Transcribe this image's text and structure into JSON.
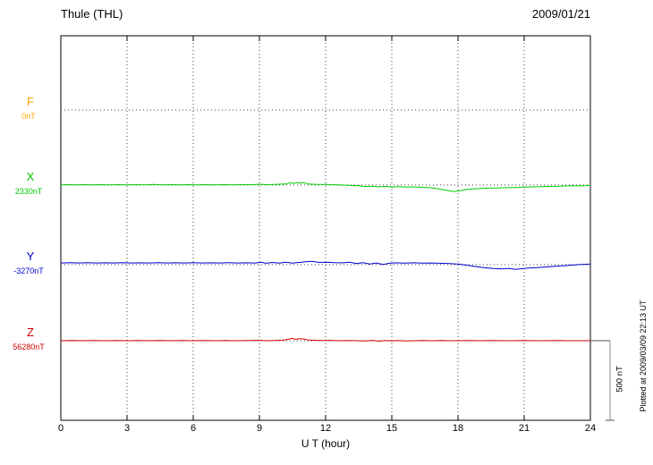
{
  "header": {
    "title": "Thule (THL)",
    "date": "2009/01/21"
  },
  "footer": {
    "plotted_at": "Plotted at 2009/03/09 22:13 UT"
  },
  "chart_data": {
    "type": "line",
    "station": "Thule (THL)",
    "date": "2009/01/21",
    "xlabel": "U T (hour)",
    "x_range": [
      0,
      24
    ],
    "x_ticks": [
      0,
      3,
      6,
      9,
      12,
      15,
      18,
      21,
      24
    ],
    "grid": "dotted vertical lines every 3 hours; dotted horizontal baseline per component",
    "legend_position": "left",
    "scale_bar": {
      "label": "500 nT",
      "value_nt": 500
    },
    "series": [
      {
        "id": "F",
        "label": "F",
        "baseline_label": "0nT",
        "color": "#FFA500",
        "baseline_frac": 0.193,
        "points": []
      },
      {
        "id": "X",
        "label": "X",
        "baseline_label": "2330nT",
        "color": "#00CC00",
        "baseline_frac": 0.388,
        "points": [
          [
            0,
            0
          ],
          [
            0.3,
            2
          ],
          [
            0.6,
            0
          ],
          [
            1,
            2
          ],
          [
            1.4,
            0
          ],
          [
            1.8,
            2
          ],
          [
            2.2,
            1
          ],
          [
            2.6,
            2
          ],
          [
            3,
            1
          ],
          [
            3.4,
            2
          ],
          [
            3.8,
            1
          ],
          [
            4.2,
            3
          ],
          [
            4.6,
            1
          ],
          [
            5,
            2
          ],
          [
            5.4,
            1
          ],
          [
            5.8,
            2
          ],
          [
            6.2,
            1
          ],
          [
            6.6,
            2
          ],
          [
            7,
            1
          ],
          [
            7.4,
            2
          ],
          [
            7.8,
            1
          ],
          [
            8.2,
            2
          ],
          [
            8.6,
            2
          ],
          [
            9,
            4
          ],
          [
            9.4,
            2
          ],
          [
            9.8,
            4
          ],
          [
            10.2,
            6
          ],
          [
            10.4,
            14
          ],
          [
            10.55,
            9
          ],
          [
            10.7,
            15
          ],
          [
            10.85,
            11
          ],
          [
            11,
            14
          ],
          [
            11.2,
            6
          ],
          [
            11.5,
            4
          ],
          [
            12,
            3
          ],
          [
            12.5,
            1
          ],
          [
            13,
            -2
          ],
          [
            13.5,
            -5
          ],
          [
            13.8,
            -10
          ],
          [
            14.1,
            -7
          ],
          [
            14.4,
            -12
          ],
          [
            14.7,
            -9
          ],
          [
            15,
            -13
          ],
          [
            15.3,
            -10
          ],
          [
            15.6,
            -14
          ],
          [
            16,
            -12
          ],
          [
            16.4,
            -15
          ],
          [
            16.8,
            -18
          ],
          [
            17.2,
            -26
          ],
          [
            17.5,
            -34
          ],
          [
            17.8,
            -42
          ],
          [
            18.1,
            -36
          ],
          [
            18.4,
            -28
          ],
          [
            18.7,
            -25
          ],
          [
            19,
            -22
          ],
          [
            19.4,
            -20
          ],
          [
            19.8,
            -19
          ],
          [
            20.2,
            -17
          ],
          [
            20.6,
            -16
          ],
          [
            21,
            -14
          ],
          [
            21.4,
            -12
          ],
          [
            21.8,
            -11
          ],
          [
            22.2,
            -9
          ],
          [
            22.6,
            -8
          ],
          [
            23,
            -6
          ],
          [
            23.4,
            -5
          ],
          [
            23.8,
            -4
          ],
          [
            24,
            -3
          ]
        ]
      },
      {
        "id": "Y",
        "label": "Y",
        "baseline_label": "-3270nT",
        "color": "#0000CC",
        "baseline_frac": 0.595,
        "points": [
          [
            0,
            10
          ],
          [
            0.4,
            12
          ],
          [
            0.8,
            10
          ],
          [
            1.2,
            12
          ],
          [
            1.6,
            10
          ],
          [
            2,
            11
          ],
          [
            2.4,
            10
          ],
          [
            2.8,
            12
          ],
          [
            3.2,
            10
          ],
          [
            3.6,
            11
          ],
          [
            4,
            10
          ],
          [
            4.4,
            12
          ],
          [
            4.8,
            10
          ],
          [
            5.2,
            11
          ],
          [
            5.6,
            10
          ],
          [
            6,
            12
          ],
          [
            6.4,
            10
          ],
          [
            6.8,
            11
          ],
          [
            7.2,
            10
          ],
          [
            7.6,
            12
          ],
          [
            8,
            10
          ],
          [
            8.4,
            11
          ],
          [
            8.8,
            10
          ],
          [
            9.1,
            14
          ],
          [
            9.3,
            8
          ],
          [
            9.6,
            13
          ],
          [
            9.9,
            9
          ],
          [
            10.2,
            15
          ],
          [
            10.5,
            9
          ],
          [
            10.8,
            13
          ],
          [
            11.1,
            17
          ],
          [
            11.4,
            20
          ],
          [
            11.7,
            13
          ],
          [
            12,
            15
          ],
          [
            12.4,
            12
          ],
          [
            12.8,
            11
          ],
          [
            13.1,
            15
          ],
          [
            13.4,
            6
          ],
          [
            13.7,
            12
          ],
          [
            14,
            3
          ],
          [
            14.3,
            10
          ],
          [
            14.6,
            1
          ],
          [
            14.9,
            8
          ],
          [
            15.2,
            11
          ],
          [
            15.6,
            9
          ],
          [
            16,
            11
          ],
          [
            16.4,
            9
          ],
          [
            16.8,
            10
          ],
          [
            17.2,
            8
          ],
          [
            17.6,
            6
          ],
          [
            18,
            3
          ],
          [
            18.4,
            -4
          ],
          [
            18.8,
            -12
          ],
          [
            19.2,
            -20
          ],
          [
            19.6,
            -25
          ],
          [
            20,
            -28
          ],
          [
            20.3,
            -24
          ],
          [
            20.6,
            -30
          ],
          [
            20.9,
            -26
          ],
          [
            21.2,
            -22
          ],
          [
            21.6,
            -19
          ],
          [
            22,
            -15
          ],
          [
            22.4,
            -11
          ],
          [
            22.8,
            -7
          ],
          [
            23.2,
            -3
          ],
          [
            23.6,
            1
          ],
          [
            24,
            3
          ]
        ]
      },
      {
        "id": "Z",
        "label": "Z",
        "baseline_label": "56280nT",
        "color": "#CC0000",
        "baseline_frac": 0.793,
        "points": [
          [
            0,
            0
          ],
          [
            0.5,
            1
          ],
          [
            1,
            0
          ],
          [
            1.5,
            1
          ],
          [
            2,
            0
          ],
          [
            2.5,
            1
          ],
          [
            3,
            0
          ],
          [
            3.5,
            1
          ],
          [
            4,
            0
          ],
          [
            4.5,
            1
          ],
          [
            5,
            0
          ],
          [
            5.5,
            1
          ],
          [
            6,
            0
          ],
          [
            6.5,
            1
          ],
          [
            7,
            0
          ],
          [
            7.5,
            1
          ],
          [
            8,
            0
          ],
          [
            8.5,
            1
          ],
          [
            9,
            2
          ],
          [
            9.4,
            0
          ],
          [
            9.8,
            2
          ],
          [
            10.1,
            4
          ],
          [
            10.35,
            10
          ],
          [
            10.5,
            15
          ],
          [
            10.65,
            8
          ],
          [
            10.8,
            13
          ],
          [
            11,
            11
          ],
          [
            11.2,
            5
          ],
          [
            11.5,
            3
          ],
          [
            11.8,
            1
          ],
          [
            12.2,
            2
          ],
          [
            12.6,
            0
          ],
          [
            13,
            1
          ],
          [
            13.4,
            0
          ],
          [
            13.8,
            -2
          ],
          [
            14.1,
            2
          ],
          [
            14.4,
            -3
          ],
          [
            14.7,
            1
          ],
          [
            15,
            -2
          ],
          [
            15.3,
            1
          ],
          [
            15.6,
            -2
          ],
          [
            16,
            0
          ],
          [
            16.4,
            1
          ],
          [
            16.8,
            0
          ],
          [
            17.2,
            1
          ],
          [
            17.6,
            0
          ],
          [
            18,
            0
          ],
          [
            18.5,
            1
          ],
          [
            19,
            0
          ],
          [
            19.5,
            1
          ],
          [
            20,
            0
          ],
          [
            20.5,
            0
          ],
          [
            21,
            1
          ],
          [
            21.5,
            0
          ],
          [
            22,
            0
          ],
          [
            22.5,
            1
          ],
          [
            23,
            0
          ],
          [
            23.5,
            0
          ],
          [
            24,
            0
          ]
        ]
      }
    ]
  }
}
